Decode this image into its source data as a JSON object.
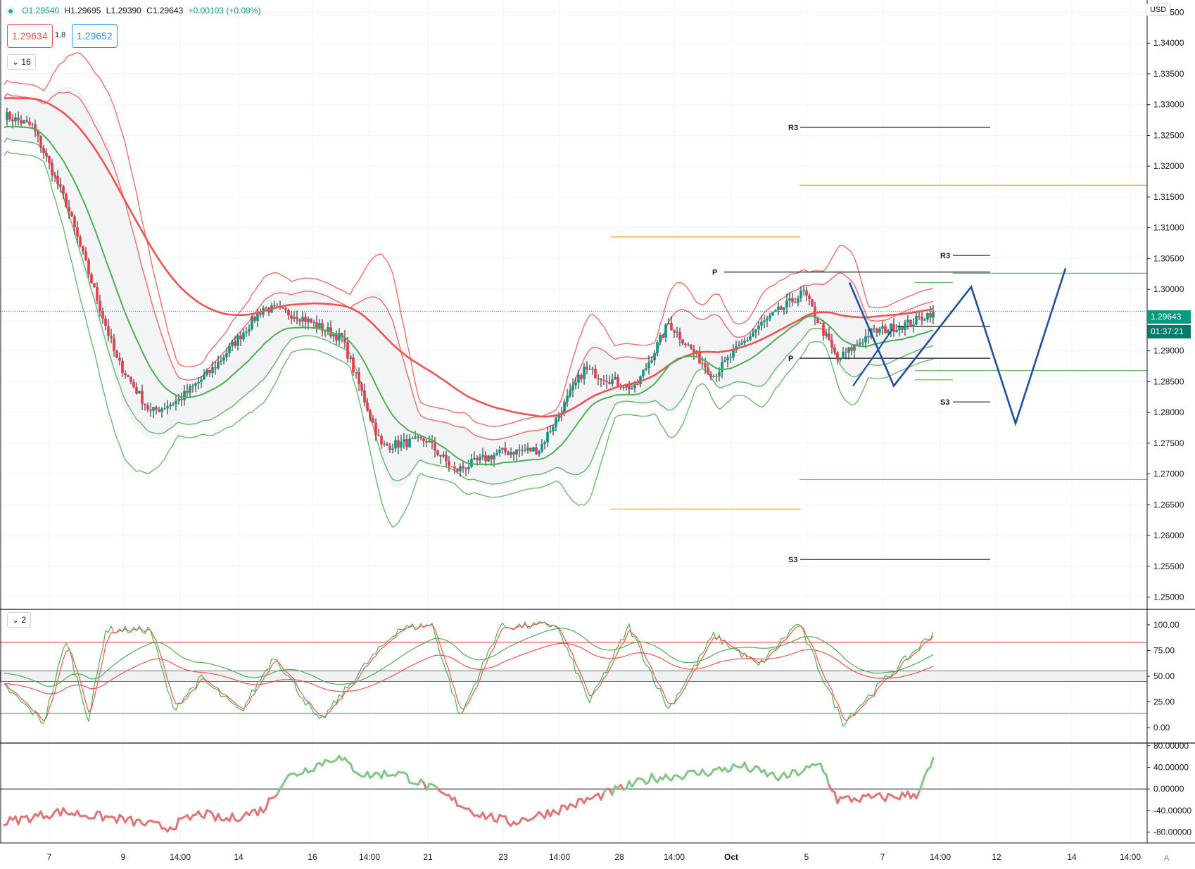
{
  "toolbar": {
    "open": "O1.29540",
    "high": "H1.29695",
    "low": "L1.29390",
    "close": "C1.29643",
    "change": "+0.00103 (+0.08%)",
    "sell_price": "1.29634",
    "buy_price": "1.29652",
    "spread": "1.8",
    "main_collapse": "16",
    "osc_collapse": "2",
    "currency": "USD",
    "auto_label": "A"
  },
  "price_tags": {
    "last_price": "1.29643",
    "countdown": "01:37:21"
  },
  "colors": {
    "bull": "#089981",
    "bear": "#f23645",
    "red_line": "#ef5350",
    "green_line": "#4caf50",
    "orange_level": "#ff9800",
    "projection": "#1e4fa3"
  },
  "chart_data": [
    {
      "type": "candlestick",
      "ylim": [
        1.248,
        1.347
      ],
      "y_ticks": [
        "1.34500",
        "1.34000",
        "1.33500",
        "1.33000",
        "1.32500",
        "1.32000",
        "1.31500",
        "1.31000",
        "1.30500",
        "1.30000",
        "1.29500",
        "1.29000",
        "1.28500",
        "1.28000",
        "1.27500",
        "1.27000",
        "1.26500",
        "1.26000",
        "1.25500",
        "1.25000"
      ],
      "x_ticks": [
        "7",
        "9",
        "14:00",
        "14",
        "16",
        "14:00",
        "21",
        "23",
        "14:00",
        "28",
        "14:00",
        "Oct",
        "5",
        "7",
        "14:00",
        "12",
        "14",
        "14:00"
      ],
      "last_price": 1.29643,
      "pivot_labels": [
        "R3",
        "P",
        "S3",
        "R3",
        "P",
        "S3"
      ],
      "pivot_levels_weekly": {
        "R3": 1.3263,
        "P": 1.3028,
        "S3": 1.2561
      },
      "pivot_levels_daily": {
        "R3": 1.3055,
        "P": 1.2888,
        "S3": 1.2817
      },
      "orange_levels": [
        1.3169,
        1.3085,
        1.2691,
        1.2643
      ],
      "projection_path": [
        1.3011,
        1.2843,
        1.3004,
        1.2782,
        1.3034
      ]
    },
    {
      "type": "line",
      "name": "stochastic",
      "ylim": [
        -15,
        115
      ],
      "y_ticks": [
        "100.00",
        "75.00",
        "50.00",
        "25.00",
        "0.00"
      ],
      "levels": [
        83,
        55,
        45,
        14
      ]
    },
    {
      "type": "line",
      "name": "momentum",
      "ylim": [
        -100,
        85
      ],
      "y_ticks": [
        "80.00000",
        "40.00000",
        "0.00000",
        "-40.00000",
        "-80.00000"
      ],
      "zero_line": 0
    }
  ]
}
